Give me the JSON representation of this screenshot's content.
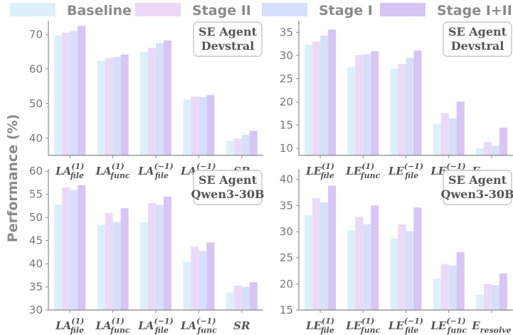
{
  "ylabel": "Performance (%)",
  "legend": [
    {
      "name": "Baseline",
      "color": "#dcf0fa"
    },
    {
      "name": "Stage II",
      "color": "#ecd9f8"
    },
    {
      "name": "Stage I",
      "color": "#d6e0fb"
    },
    {
      "name": "Stage I+II",
      "color": "#d6c5f5"
    }
  ],
  "chart_data": [
    {
      "id": "tl",
      "type": "bar",
      "annotation": [
        "SE Agent",
        "Devstral"
      ],
      "ylim": [
        35,
        74
      ],
      "yticks": [
        40,
        50,
        60,
        70
      ],
      "categories": [
        {
          "base": "LA",
          "sup": "(1)",
          "sub": "file"
        },
        {
          "base": "LA",
          "sup": "(1)",
          "sub": "func"
        },
        {
          "base": "LA",
          "sup": "(−1)",
          "sub": "file"
        },
        {
          "base": "LA",
          "sup": "(−1)",
          "sub": "func"
        },
        {
          "base": "SR",
          "sup": "",
          "sub": ""
        }
      ],
      "series": [
        {
          "name": "Baseline",
          "values": [
            69.7,
            62.5,
            65.0,
            51.2,
            39.2
          ]
        },
        {
          "name": "Stage II",
          "values": [
            70.5,
            63.2,
            66.1,
            52.0,
            39.9
          ]
        },
        {
          "name": "Stage I",
          "values": [
            71.1,
            63.5,
            67.5,
            51.9,
            40.9
          ]
        },
        {
          "name": "Stage I+II",
          "values": [
            72.5,
            64.2,
            68.3,
            52.5,
            42.1
          ]
        }
      ]
    },
    {
      "id": "tr",
      "type": "bar",
      "annotation": [
        "SE Agent",
        "Devstral"
      ],
      "ylim": [
        8.5,
        37.5
      ],
      "yticks": [
        10,
        15,
        20,
        25,
        30,
        35
      ],
      "categories": [
        {
          "base": "LE",
          "sup": "(1)",
          "sub": "file"
        },
        {
          "base": "LE",
          "sup": "(1)",
          "sub": "func"
        },
        {
          "base": "LE",
          "sup": "(−1)",
          "sub": "file"
        },
        {
          "base": "LE",
          "sup": "(−1)",
          "sub": "func"
        },
        {
          "base": "E",
          "sup": "",
          "sub": "resolve"
        }
      ],
      "series": [
        {
          "name": "Baseline",
          "values": [
            32.3,
            27.5,
            27.2,
            15.3,
            10.0
          ]
        },
        {
          "name": "Stage II",
          "values": [
            33.0,
            30.1,
            28.2,
            17.6,
            11.4
          ]
        },
        {
          "name": "Stage I",
          "values": [
            34.3,
            30.3,
            29.5,
            16.5,
            10.5
          ]
        },
        {
          "name": "Stage I+II",
          "values": [
            35.6,
            30.9,
            31.1,
            20.1,
            14.5
          ]
        }
      ]
    },
    {
      "id": "bl",
      "type": "bar",
      "annotation": [
        "SE Agent",
        "Qwen3-30B"
      ],
      "ylim": [
        30,
        60.5
      ],
      "yticks": [
        30,
        35,
        40,
        45,
        50,
        55,
        60
      ],
      "categories": [
        {
          "base": "LA",
          "sup": "(1)",
          "sub": "file"
        },
        {
          "base": "LA",
          "sup": "(1)",
          "sub": "func"
        },
        {
          "base": "LA",
          "sup": "(−1)",
          "sub": "file"
        },
        {
          "base": "LA",
          "sup": "(−1)",
          "sub": "func"
        },
        {
          "base": "SR",
          "sup": "",
          "sub": ""
        }
      ],
      "series": [
        {
          "name": "Baseline",
          "values": [
            52.8,
            48.4,
            49.0,
            40.4,
            33.8
          ]
        },
        {
          "name": "Stage II",
          "values": [
            56.5,
            51.0,
            53.1,
            43.7,
            35.3
          ]
        },
        {
          "name": "Stage I",
          "values": [
            56.0,
            49.0,
            52.7,
            42.8,
            35.0
          ]
        },
        {
          "name": "Stage I+II",
          "values": [
            57.0,
            52.0,
            54.5,
            44.6,
            36.0
          ]
        }
      ]
    },
    {
      "id": "br",
      "type": "bar",
      "annotation": [
        "SE Agent",
        "Qwen3-30B"
      ],
      "ylim": [
        15,
        42
      ],
      "yticks": [
        15,
        20,
        25,
        30,
        35,
        40
      ],
      "categories": [
        {
          "base": "LE",
          "sup": "(1)",
          "sub": "file"
        },
        {
          "base": "LE",
          "sup": "(1)",
          "sub": "func"
        },
        {
          "base": "LE",
          "sup": "(−1)",
          "sub": "file"
        },
        {
          "base": "LE",
          "sup": "(−1)",
          "sub": "func"
        },
        {
          "base": "E",
          "sup": "",
          "sub": "resolve"
        }
      ],
      "series": [
        {
          "name": "Baseline",
          "values": [
            33.2,
            30.3,
            28.7,
            21.0,
            18.0
          ]
        },
        {
          "name": "Stage II",
          "values": [
            36.4,
            32.8,
            31.4,
            23.8,
            20.0
          ]
        },
        {
          "name": "Stage I",
          "values": [
            35.6,
            31.4,
            30.1,
            23.5,
            19.8
          ]
        },
        {
          "name": "Stage I+II",
          "values": [
            38.8,
            35.0,
            34.6,
            26.1,
            22.0
          ]
        }
      ]
    }
  ]
}
